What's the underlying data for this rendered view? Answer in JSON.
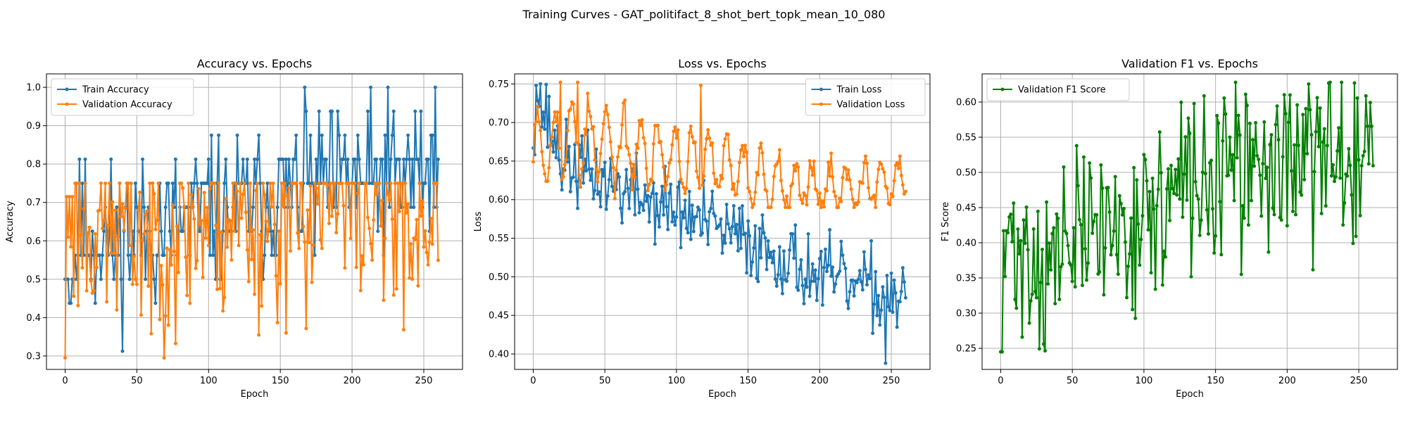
{
  "figure_title": "Training Curves - GAT_politifact_8_shot_bert_topk_mean_10_080",
  "colors": {
    "blue": "#1f77b4",
    "orange": "#ff7f0e",
    "green": "#008000",
    "grid": "#b0b0b0"
  },
  "chart_data": [
    {
      "type": "line",
      "title": "Accuracy vs. Epochs",
      "xlabel": "Epoch",
      "ylabel": "Accuracy",
      "xlim": [
        -13,
        277
      ],
      "ylim": [
        0.265,
        1.035
      ],
      "xticks": [
        0,
        50,
        100,
        150,
        200,
        250
      ],
      "yticks": [
        0.3,
        0.4,
        0.5,
        0.6,
        0.7,
        0.8,
        0.9,
        1.0
      ],
      "ytick_labels": [
        "0.3",
        "0.4",
        "0.5",
        "0.6",
        "0.7",
        "0.8",
        "0.9",
        "1.0"
      ],
      "grid": true,
      "legend_position": "upper-left",
      "series": [
        {
          "name": "Train Accuracy",
          "color": "#1f77b4",
          "seed": 11,
          "n": 261,
          "anchors": [
            [
              0,
              0.5
            ],
            [
              4,
              0.5
            ],
            [
              10,
              0.62
            ],
            [
              30,
              0.6
            ],
            [
              60,
              0.63
            ],
            [
              100,
              0.66
            ],
            [
              130,
              0.7
            ],
            [
              165,
              0.74
            ],
            [
              200,
              0.76
            ],
            [
              235,
              0.77
            ],
            [
              255,
              0.8
            ],
            [
              260,
              0.68
            ]
          ],
          "noise": 0.1,
          "quant": 0.0625,
          "range": [
            0.3125,
            1.0
          ],
          "fixed": [
            [
              0,
              0.5
            ],
            [
              2,
              0.5
            ],
            [
              12,
              0.75
            ],
            [
              100,
              0.8125
            ],
            [
              168,
              0.9375
            ],
            [
              258,
              1.0
            ]
          ]
        },
        {
          "name": "Validation Accuracy",
          "color": "#ff7f0e",
          "seed": 23,
          "n": 261,
          "anchors": [
            [
              0,
              0.3
            ],
            [
              1,
              0.71
            ],
            [
              15,
              0.66
            ],
            [
              60,
              0.62
            ],
            [
              100,
              0.66
            ],
            [
              150,
              0.7
            ],
            [
              200,
              0.72
            ],
            [
              260,
              0.66
            ]
          ],
          "noise": 0.15,
          "quant": 0,
          "range": [
            0.295,
            0.75
          ],
          "fixed": [
            [
              0,
              0.295
            ],
            [
              1,
              0.715
            ],
            [
              3,
              0.715
            ],
            [
              5,
              0.715
            ],
            [
              154,
              0.36
            ],
            [
              242,
              0.5
            ]
          ]
        }
      ]
    },
    {
      "type": "line",
      "title": "Loss vs. Epochs",
      "xlabel": "Epoch",
      "ylabel": "Loss",
      "xlim": [
        -13,
        277
      ],
      "ylim": [
        0.38,
        0.763
      ],
      "xticks": [
        0,
        50,
        100,
        150,
        200,
        250
      ],
      "yticks": [
        0.4,
        0.45,
        0.5,
        0.55,
        0.6,
        0.65,
        0.7,
        0.75
      ],
      "ytick_labels": [
        "0.40",
        "0.45",
        "0.50",
        "0.55",
        "0.60",
        "0.65",
        "0.70",
        "0.75"
      ],
      "grid": true,
      "legend_position": "upper-right",
      "series": [
        {
          "name": "Train Loss",
          "color": "#1f77b4",
          "seed": 37,
          "n": 261,
          "anchors": [
            [
              0,
              0.69
            ],
            [
              2,
              0.74
            ],
            [
              20,
              0.65
            ],
            [
              60,
              0.615
            ],
            [
              100,
              0.585
            ],
            [
              130,
              0.56
            ],
            [
              160,
              0.54
            ],
            [
              200,
              0.5
            ],
            [
              240,
              0.48
            ],
            [
              260,
              0.48
            ]
          ],
          "noise": 0.025,
          "quant": 0,
          "range": [
            0.387,
            0.75
          ],
          "fixed": [
            [
              2,
              0.748
            ],
            [
              246,
              0.388
            ],
            [
              119,
              0.625
            ]
          ]
        },
        {
          "name": "Validation Loss",
          "color": "#ff7f0e",
          "seed": 53,
          "n": 261,
          "anchors": [
            [
              0,
              0.67
            ],
            [
              30,
              0.68
            ],
            [
              80,
              0.66
            ],
            [
              120,
              0.65
            ],
            [
              160,
              0.625
            ],
            [
              210,
              0.615
            ],
            [
              260,
              0.625
            ]
          ],
          "noise": 0.01,
          "quant": 0,
          "range": [
            0.59,
            0.753
          ],
          "wave": {
            "amp": 0.05,
            "period": 12,
            "decay": 0.55
          },
          "fixed": [
            [
              19,
              0.752
            ],
            [
              31,
              0.752
            ],
            [
              117,
              0.748
            ]
          ]
        }
      ]
    },
    {
      "type": "line",
      "title": "Validation F1 vs. Epochs",
      "xlabel": "Epoch",
      "ylabel": "F1 Score",
      "xlim": [
        -13,
        277
      ],
      "ylim": [
        0.22,
        0.64
      ],
      "xticks": [
        0,
        50,
        100,
        150,
        200,
        250
      ],
      "yticks": [
        0.25,
        0.3,
        0.35,
        0.4,
        0.45,
        0.5,
        0.55,
        0.6
      ],
      "ytick_labels": [
        "0.25",
        "0.30",
        "0.35",
        "0.40",
        "0.45",
        "0.50",
        "0.55",
        "0.60"
      ],
      "grid": true,
      "legend_position": "upper-left",
      "series": [
        {
          "name": "Validation F1 Score",
          "color": "#008000",
          "seed": 71,
          "n": 261,
          "anchors": [
            [
              0,
              0.25
            ],
            [
              2,
              0.41
            ],
            [
              30,
              0.36
            ],
            [
              60,
              0.42
            ],
            [
              100,
              0.43
            ],
            [
              130,
              0.48
            ],
            [
              170,
              0.5
            ],
            [
              200,
              0.52
            ],
            [
              230,
              0.51
            ],
            [
              260,
              0.53
            ]
          ],
          "noise": 0.06,
          "quant": 0,
          "range": [
            0.245,
            0.628
          ],
          "fixed": [
            [
              1,
              0.245
            ],
            [
              2,
              0.417
            ],
            [
              4,
              0.417
            ],
            [
              229,
              0.627
            ],
            [
              247,
              0.627
            ],
            [
              202,
              0.61
            ]
          ]
        }
      ]
    }
  ]
}
